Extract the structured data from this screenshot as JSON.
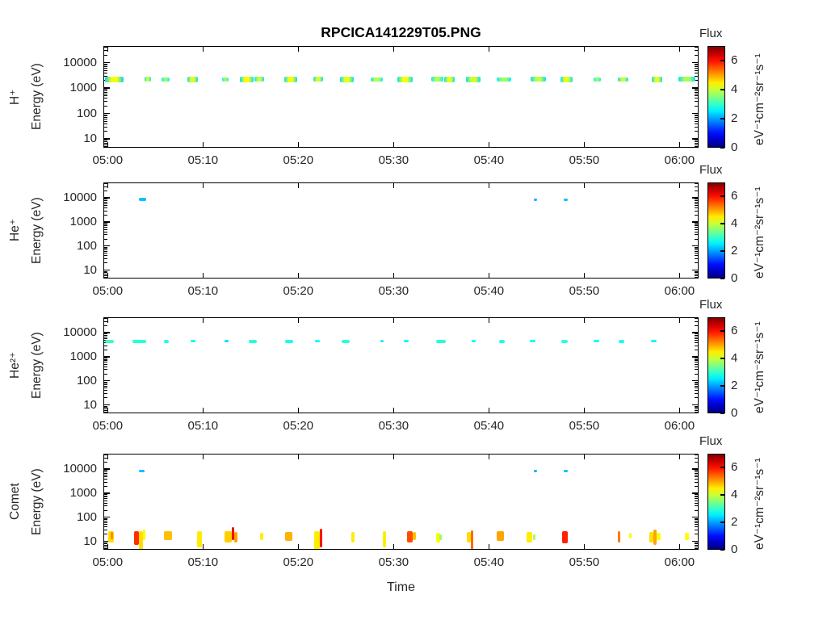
{
  "title": "RPCICA141229T05.PNG",
  "xlabel": "Time",
  "chart_data": {
    "type": "heatmap",
    "title": "RPCICA141229T05.PNG",
    "xlabel": "Time",
    "x_ticks": [
      "05:00",
      "05:10",
      "05:20",
      "05:30",
      "05:40",
      "05:50",
      "06:00"
    ],
    "x_tick_minutes": [
      0,
      10,
      20,
      30,
      40,
      50,
      60
    ],
    "x_range_minutes": [
      -0.45,
      62
    ],
    "energy_axis": {
      "label": "Energy (eV)",
      "scale": "log",
      "ticks": [
        10,
        100,
        1000,
        10000
      ],
      "tick_labels": [
        "10",
        "100",
        "1000",
        "10000"
      ],
      "range": [
        4.5,
        45000
      ]
    },
    "colorbar": {
      "title": "Flux",
      "units": "eV⁻¹cm⁻²sr⁻¹s⁻¹",
      "range": [
        0,
        7
      ],
      "ticks": [
        0,
        2,
        4,
        6
      ],
      "colormap": "jet"
    },
    "point_format": [
      "t_start_min_after_0500",
      "duration_min",
      "energy_low_eV",
      "energy_high_eV",
      "flux",
      "edge_flux_optional"
    ],
    "panels": [
      {
        "id": "h-plus",
        "species": "H⁺",
        "points": [
          [
            -0.4,
            2.0,
            1800,
            3100,
            4.3,
            2.3
          ],
          [
            3.8,
            0.7,
            1900,
            3000,
            4.0,
            2.4
          ],
          [
            5.6,
            0.8,
            1900,
            2900,
            3.6,
            2.5
          ],
          [
            8.3,
            1.1,
            1800,
            3000,
            4.2,
            2.4
          ],
          [
            11.9,
            0.7,
            1900,
            2900,
            3.7,
            2.5
          ],
          [
            13.8,
            1.4,
            1800,
            3100,
            4.4,
            2.4
          ],
          [
            15.3,
            1.0,
            1900,
            3000,
            4.0,
            2.4
          ],
          [
            18.4,
            1.4,
            1800,
            3000,
            4.3,
            2.4
          ],
          [
            21.5,
            1.0,
            1900,
            3000,
            4.1,
            2.4
          ],
          [
            24.3,
            1.4,
            1800,
            3000,
            4.2,
            2.4
          ],
          [
            27.5,
            1.3,
            1900,
            2900,
            3.9,
            2.5
          ],
          [
            30.3,
            1.6,
            1800,
            3100,
            4.3,
            2.4
          ],
          [
            33.9,
            1.2,
            1900,
            3000,
            3.8,
            2.5
          ],
          [
            35.2,
            1.1,
            1800,
            3000,
            4.2,
            2.4
          ],
          [
            37.5,
            1.5,
            1800,
            3000,
            4.1,
            2.4
          ],
          [
            40.7,
            1.6,
            1900,
            2900,
            3.7,
            2.5
          ],
          [
            44.3,
            1.6,
            1900,
            3000,
            3.9,
            2.4
          ],
          [
            47.4,
            1.3,
            1800,
            3000,
            4.2,
            2.4
          ],
          [
            50.9,
            0.8,
            1900,
            2800,
            3.6,
            2.5
          ],
          [
            53.4,
            1.1,
            1900,
            2900,
            4.0,
            2.4
          ],
          [
            57.0,
            1.1,
            1800,
            3000,
            4.2,
            2.4
          ],
          [
            59.8,
            1.8,
            1900,
            3000,
            3.8,
            2.4
          ]
        ]
      },
      {
        "id": "he-plus",
        "species": "He⁺",
        "points": [
          [
            3.2,
            0.8,
            8200,
            10800,
            2.2
          ],
          [
            44.6,
            0.4,
            8200,
            10500,
            2.1
          ],
          [
            47.8,
            0.4,
            8200,
            10500,
            2.2
          ]
        ]
      },
      {
        "id": "he-2plus",
        "species": "He²⁺",
        "points": [
          [
            -0.4,
            1.0,
            4200,
            5800,
            3.0
          ],
          [
            2.5,
            1.5,
            4200,
            5800,
            2.9
          ],
          [
            5.8,
            0.5,
            4200,
            5600,
            2.8
          ],
          [
            8.6,
            0.5,
            4300,
            5600,
            2.7
          ],
          [
            12.2,
            0.4,
            4300,
            5400,
            2.4
          ],
          [
            14.7,
            0.9,
            4200,
            5700,
            2.9
          ],
          [
            18.5,
            0.9,
            4200,
            5700,
            2.8
          ],
          [
            21.7,
            0.5,
            4300,
            5500,
            2.6
          ],
          [
            24.5,
            0.8,
            4200,
            5700,
            2.9
          ],
          [
            28.5,
            0.4,
            4300,
            5400,
            2.5
          ],
          [
            31.0,
            0.5,
            4300,
            5500,
            2.6
          ],
          [
            34.4,
            1.0,
            4200,
            5800,
            2.9
          ],
          [
            38.1,
            0.4,
            4300,
            5500,
            2.6
          ],
          [
            41.0,
            0.6,
            4200,
            5600,
            2.8
          ],
          [
            44.2,
            0.6,
            4300,
            5600,
            2.7
          ],
          [
            47.5,
            0.7,
            4200,
            5700,
            2.9
          ],
          [
            50.9,
            0.6,
            4300,
            5500,
            2.7
          ],
          [
            53.5,
            0.6,
            4200,
            5600,
            2.8
          ],
          [
            56.9,
            0.6,
            4300,
            5500,
            2.7
          ]
        ]
      },
      {
        "id": "comet",
        "species": "Comet",
        "points": [
          [
            3.2,
            0.6,
            8200,
            10500,
            2.2
          ],
          [
            44.6,
            0.4,
            8200,
            10500,
            2.1
          ],
          [
            47.8,
            0.4,
            8200,
            10500,
            2.2
          ],
          [
            0.0,
            0.6,
            10,
            30,
            4.6
          ],
          [
            0.2,
            0.3,
            13,
            26,
            5.2
          ],
          [
            2.7,
            0.5,
            8,
            30,
            5.8
          ],
          [
            3.2,
            0.4,
            5,
            28,
            4.6
          ],
          [
            3.6,
            0.3,
            12,
            35,
            4.4
          ],
          [
            5.8,
            0.9,
            12,
            28,
            4.8
          ],
          [
            9.3,
            0.5,
            6,
            28,
            4.5
          ],
          [
            12.2,
            0.7,
            10,
            28,
            4.7
          ],
          [
            12.9,
            0.3,
            12,
            42,
            6.2
          ],
          [
            13.2,
            0.3,
            10,
            26,
            5.0
          ],
          [
            15.9,
            0.3,
            12,
            24,
            4.5
          ],
          [
            18.5,
            0.8,
            11,
            27,
            4.9
          ],
          [
            21.6,
            0.6,
            5,
            28,
            4.5
          ],
          [
            22.2,
            0.2,
            6,
            36,
            6.0
          ],
          [
            25.5,
            0.3,
            10,
            26,
            4.5
          ],
          [
            28.8,
            0.3,
            6,
            30,
            4.5
          ],
          [
            31.3,
            0.6,
            10,
            30,
            5.6
          ],
          [
            31.9,
            0.4,
            12,
            26,
            4.8
          ],
          [
            34.4,
            0.4,
            10,
            24,
            4.4
          ],
          [
            34.7,
            0.2,
            12,
            22,
            3.6
          ],
          [
            37.6,
            0.4,
            10,
            26,
            4.6
          ],
          [
            38.0,
            0.2,
            5,
            32,
            5.4
          ],
          [
            40.7,
            0.8,
            11,
            28,
            5.0
          ],
          [
            43.9,
            0.6,
            10,
            26,
            4.5
          ],
          [
            44.5,
            0.3,
            12,
            22,
            3.7
          ],
          [
            47.6,
            0.6,
            9,
            30,
            5.9
          ],
          [
            53.4,
            0.3,
            10,
            28,
            5.3
          ],
          [
            54.6,
            0.3,
            14,
            24,
            4.4
          ],
          [
            56.7,
            0.5,
            10,
            26,
            4.6
          ],
          [
            57.2,
            0.3,
            8,
            34,
            5.0
          ],
          [
            57.5,
            0.4,
            12,
            24,
            4.3
          ],
          [
            60.5,
            0.4,
            12,
            24,
            4.4
          ]
        ]
      }
    ]
  }
}
